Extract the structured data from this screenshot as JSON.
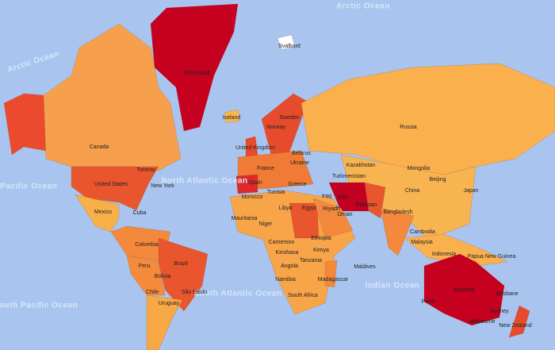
{
  "oceans": [
    "Arctic Ocean",
    "Arctic Ocean",
    "North Pacific Ocean",
    "North Atlantic Ocean",
    "South Pacific Ocean",
    "South Atlantic Ocean",
    "Indian Ocean"
  ],
  "countries": [
    "Greenland",
    "Svalbard",
    "Iceland",
    "Russia",
    "Canada",
    "United States",
    "Mexico",
    "Cuba",
    "Colombia",
    "Peru",
    "Brazil",
    "Bolivia",
    "Chile",
    "Uruguay",
    "Norway",
    "Sweden",
    "United Kingdom",
    "Belarus",
    "Ukraine",
    "France",
    "Spain",
    "Morocco",
    "Tunisia",
    "Greece",
    "Libya",
    "Egypt",
    "Mauritania",
    "Niger",
    "Ethiopia",
    "Cameroon",
    "Kenya",
    "Angola",
    "Tanzania",
    "Namibia",
    "South Africa",
    "Madagascar",
    "Maldives",
    "Kazakhstan",
    "Turkmenistan",
    "Mongolia",
    "China",
    "Japan",
    "Iran",
    "Iraq",
    "Oman",
    "Pakistan",
    "Bangladesh",
    "Cambodia",
    "Malaysia",
    "Indonesia",
    "Papua New Guinea",
    "Australia",
    "New Zealand"
  ],
  "cities": [
    "Toronto",
    "New York",
    "São Paulo",
    "Kinshasa",
    "Riyadh",
    "Beijing",
    "Perth",
    "Sydney",
    "Melbourne",
    "Brisbane"
  ]
}
